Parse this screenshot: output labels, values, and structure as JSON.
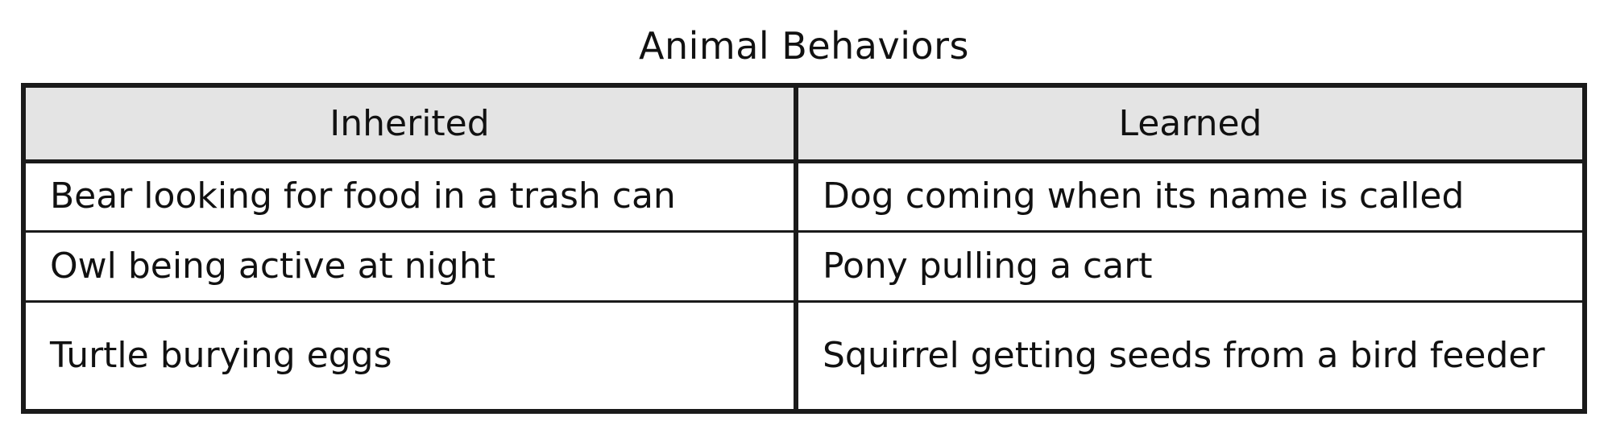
{
  "title": "Animal Behaviors",
  "table": {
    "headers": [
      "Inherited",
      "Learned"
    ],
    "rows": [
      [
        "Bear looking for food in a trash can",
        "Dog coming when its name is called"
      ],
      [
        "Owl being active at night",
        "Pony pulling a cart"
      ],
      [
        "Turtle burying eggs",
        "Squirrel getting seeds from a bird feeder"
      ]
    ]
  },
  "colors": {
    "header_background": "#e4e4e4",
    "border": "#1a1a1a",
    "text": "#111111"
  }
}
